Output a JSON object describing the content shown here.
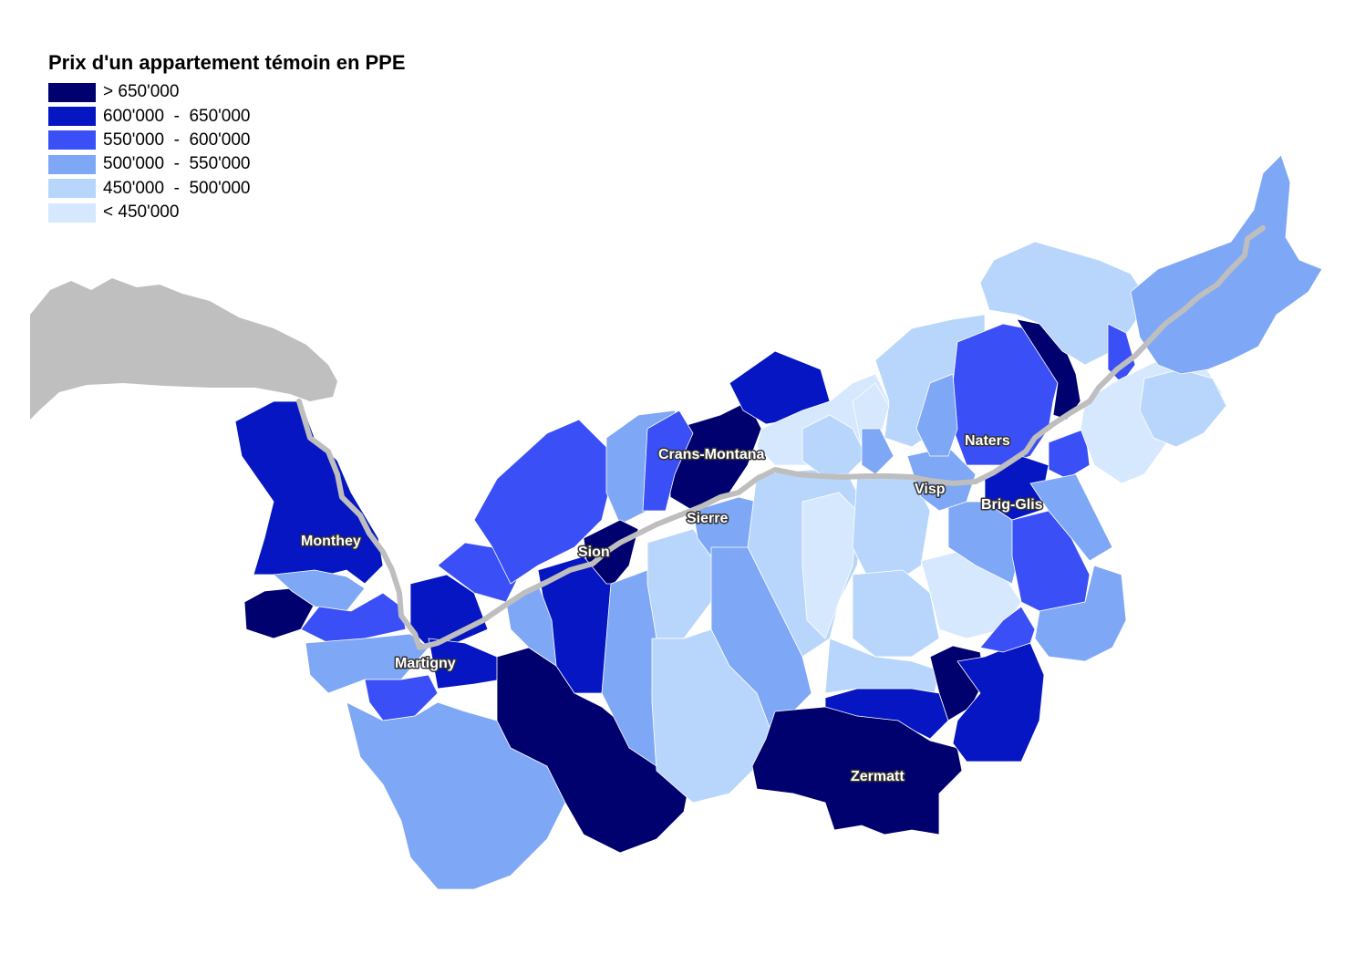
{
  "legend": {
    "title": "Prix d'un appartement témoin en PPE",
    "items": [
      {
        "label": "> 650'000",
        "color": "#00006e"
      },
      {
        "label": "600'000  -  650'000",
        "color": "#0516c2"
      },
      {
        "label": "550'000  -  600'000",
        "color": "#3a4ff5"
      },
      {
        "label": "500'000  -  550'000",
        "color": "#7ea7f5"
      },
      {
        "label": "450'000  -  500'000",
        "color": "#b8d6fb"
      },
      {
        "label": "< 450'000",
        "color": "#d6e8fd"
      }
    ]
  },
  "lake": {
    "color": "#bfbfbf"
  },
  "river": {
    "color": "#bebebe"
  },
  "cities": {
    "monthey": "Monthey",
    "martigny": "Martigny",
    "sion": "Sion",
    "crans_montana": "Crans-Montana",
    "sierre": "Sierre",
    "visp": "Visp",
    "naters": "Naters",
    "brig_glis": "Brig-Glis",
    "zermatt": "Zermatt"
  }
}
